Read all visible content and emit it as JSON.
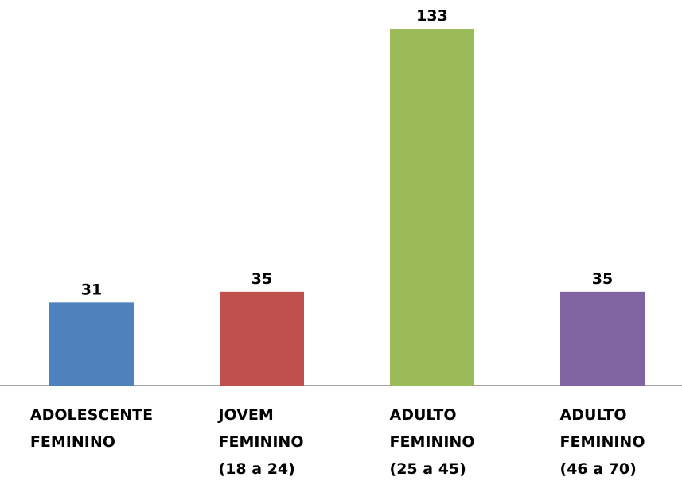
{
  "chart_data": {
    "type": "bar",
    "categories": [
      [
        "ADOLESCENTE",
        "FEMININO"
      ],
      [
        "JOVEM",
        "FEMININO",
        "(18 a 24)"
      ],
      [
        "ADULTO",
        "FEMININO",
        "(25 a 45)"
      ],
      [
        "ADULTO",
        "FEMININO",
        "(46 a 70)"
      ]
    ],
    "values": [
      31,
      35,
      133,
      35
    ],
    "colors": [
      "#4f81bd",
      "#c0504d",
      "#9bbb59",
      "#8064a2"
    ]
  }
}
